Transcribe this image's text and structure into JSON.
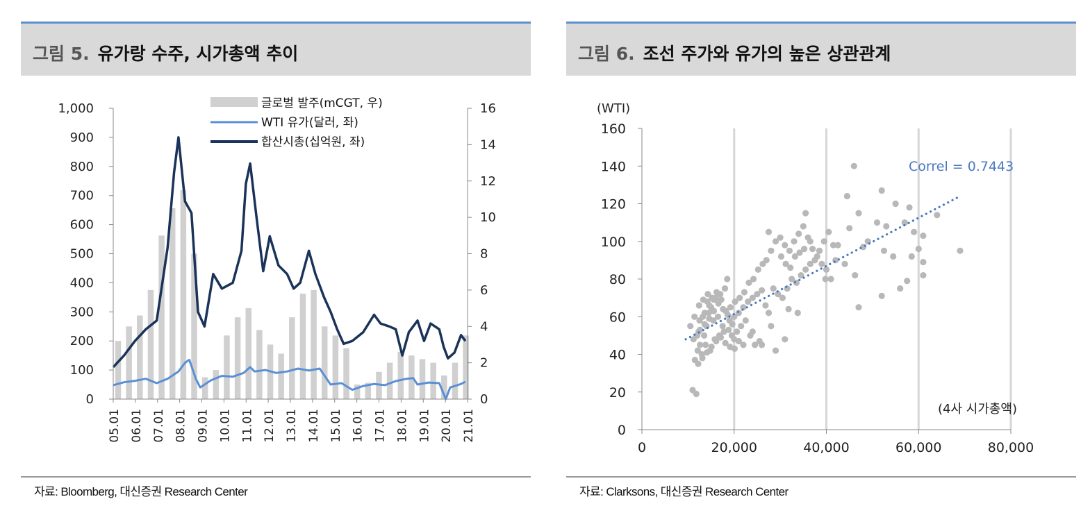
{
  "figures": [
    {
      "label": "그림 5.",
      "title": "유가랑 수주, 시가총액 추이",
      "source": "자료: Bloomberg, 대신증권 Research Center"
    },
    {
      "label": "그림 6.",
      "title": "조선 주가와 유가의 높은 상관관계",
      "source": "자료: Clarksons, 대신증권 Research Center"
    }
  ],
  "chart_data": [
    {
      "type": "line",
      "subtype": "dual-axis line with bar background",
      "x_tick_labels": [
        "05.01",
        "06.01",
        "07.01",
        "08.01",
        "09.01",
        "10.01",
        "11.01",
        "12.01",
        "13.01",
        "14.01",
        "15.01",
        "16.01",
        "17.01",
        "18.01",
        "19.01",
        "20.01",
        "21.01"
      ],
      "y_left": {
        "ticks": [
          "1,000",
          "900",
          "800",
          "700",
          "600",
          "500",
          "400",
          "300",
          "200",
          "100",
          "0"
        ],
        "range": [
          0,
          1000
        ]
      },
      "y_right": {
        "ticks": [
          "16",
          "14",
          "12",
          "10",
          "8",
          "6",
          "4",
          "2",
          "0"
        ],
        "range": [
          0,
          16
        ]
      },
      "x_range": [
        2005.0,
        2021.3
      ],
      "legend_position": "top-right",
      "colors": {
        "orders": "#d0d0d0",
        "wti": "#5a8fd6",
        "mcap": "#1a3358"
      },
      "series": [
        {
          "name": "글로벌 발주(mCGT, 우)",
          "axis": "right",
          "kind": "bar",
          "x": [
            2005.0,
            2005.5,
            2006.0,
            2006.5,
            2007.0,
            2007.5,
            2008.0,
            2008.5,
            2009.0,
            2009.5,
            2010.0,
            2010.5,
            2011.0,
            2011.5,
            2012.0,
            2012.5,
            2013.0,
            2013.5,
            2014.0,
            2014.5,
            2015.0,
            2015.5,
            2016.0,
            2016.5,
            2017.0,
            2017.5,
            2018.0,
            2018.5,
            2019.0,
            2019.5,
            2020.0,
            2020.5,
            2021.0
          ],
          "values": [
            3.2,
            4.0,
            4.6,
            6.0,
            9.0,
            10.5,
            11.5,
            8.0,
            1.2,
            1.6,
            3.5,
            4.5,
            5.0,
            3.8,
            3.0,
            2.5,
            4.5,
            5.8,
            6.0,
            4.0,
            3.5,
            2.8,
            0.8,
            0.9,
            1.5,
            2.0,
            2.6,
            2.4,
            2.2,
            2.0,
            1.3,
            2.0,
            3.5
          ]
        },
        {
          "name": "WTI 유가(달러, 좌)",
          "axis": "left",
          "kind": "line",
          "x": [
            2005.0,
            2005.5,
            2006.0,
            2006.5,
            2007.0,
            2007.5,
            2008.0,
            2008.3,
            2008.5,
            2008.8,
            2009.0,
            2009.5,
            2010.0,
            2010.5,
            2011.0,
            2011.3,
            2011.5,
            2012.0,
            2012.5,
            2013.0,
            2013.5,
            2014.0,
            2014.5,
            2015.0,
            2015.5,
            2016.0,
            2016.5,
            2017.0,
            2017.5,
            2018.0,
            2018.5,
            2018.8,
            2019.0,
            2019.5,
            2020.0,
            2020.3,
            2020.5,
            2021.0,
            2021.2
          ],
          "values": [
            48,
            58,
            63,
            70,
            55,
            70,
            95,
            125,
            135,
            70,
            40,
            65,
            80,
            77,
            90,
            110,
            95,
            100,
            90,
            95,
            105,
            98,
            105,
            50,
            55,
            32,
            45,
            52,
            48,
            62,
            70,
            72,
            50,
            57,
            55,
            -37,
            40,
            52,
            60
          ]
        },
        {
          "name": "합산시총(십억원, 좌)",
          "axis": "left",
          "kind": "line",
          "x": [
            2005.0,
            2005.5,
            2006.0,
            2006.5,
            2007.0,
            2007.5,
            2007.8,
            2008.0,
            2008.3,
            2008.6,
            2008.9,
            2009.2,
            2009.6,
            2010.0,
            2010.5,
            2010.9,
            2011.1,
            2011.3,
            2011.6,
            2011.9,
            2012.2,
            2012.6,
            2013.0,
            2013.3,
            2013.6,
            2014.0,
            2014.3,
            2014.7,
            2015.0,
            2015.3,
            2015.6,
            2016.0,
            2016.5,
            2017.0,
            2017.3,
            2017.7,
            2018.0,
            2018.3,
            2018.6,
            2019.0,
            2019.3,
            2019.6,
            2020.0,
            2020.2,
            2020.4,
            2020.7,
            2021.0,
            2021.2
          ],
          "values": [
            110,
            150,
            200,
            240,
            270,
            520,
            780,
            900,
            680,
            640,
            300,
            250,
            430,
            380,
            400,
            510,
            740,
            810,
            620,
            440,
            560,
            460,
            430,
            380,
            400,
            510,
            430,
            350,
            300,
            240,
            190,
            200,
            230,
            290,
            260,
            250,
            240,
            150,
            230,
            270,
            200,
            260,
            240,
            180,
            140,
            160,
            220,
            200
          ]
        }
      ]
    },
    {
      "type": "scatter",
      "ylabel": "(WTI)",
      "xlabel": "(4사 시가총액)",
      "x_tick_labels": [
        "0",
        "20,000",
        "40,000",
        "60,000",
        "80,000"
      ],
      "y_tick_labels": [
        "160",
        "140",
        "120",
        "100",
        "80",
        "60",
        "40",
        "20",
        "0"
      ],
      "xlim": [
        0,
        80000
      ],
      "ylim": [
        0,
        160
      ],
      "annotation": "Correl = 0.7443",
      "colors": {
        "points": "#b8b8b8",
        "trend": "#4a78c0",
        "annotation": "#4a78c0"
      },
      "trendline": {
        "x": [
          9500,
          69000
        ],
        "y": [
          48,
          124
        ]
      },
      "points": [
        [
          11000,
          21
        ],
        [
          11800,
          19
        ],
        [
          11500,
          37
        ],
        [
          12200,
          35
        ],
        [
          13000,
          40
        ],
        [
          12600,
          45
        ],
        [
          12000,
          50
        ],
        [
          12300,
          52
        ],
        [
          13500,
          50
        ],
        [
          14000,
          55
        ],
        [
          13200,
          60
        ],
        [
          14500,
          62
        ],
        [
          15000,
          65
        ],
        [
          14200,
          68
        ],
        [
          16000,
          70
        ],
        [
          17000,
          72
        ],
        [
          18000,
          75
        ],
        [
          18500,
          80
        ],
        [
          15500,
          58
        ],
        [
          16500,
          60
        ],
        [
          17500,
          55
        ],
        [
          18800,
          53
        ],
        [
          19500,
          50
        ],
        [
          20000,
          48
        ],
        [
          21000,
          47
        ],
        [
          22000,
          45
        ],
        [
          13800,
          45
        ],
        [
          14800,
          42
        ],
        [
          15800,
          48
        ],
        [
          16800,
          50
        ],
        [
          17800,
          52
        ],
        [
          19000,
          58
        ],
        [
          20000,
          60
        ],
        [
          21000,
          62
        ],
        [
          22000,
          65
        ],
        [
          23000,
          68
        ],
        [
          24000,
          70
        ],
        [
          25000,
          72
        ],
        [
          26000,
          74
        ],
        [
          21500,
          55
        ],
        [
          22500,
          58
        ],
        [
          23500,
          50
        ],
        [
          24500,
          45
        ],
        [
          25500,
          47
        ],
        [
          12500,
          58
        ],
        [
          13600,
          62
        ],
        [
          14600,
          66
        ],
        [
          15600,
          69
        ],
        [
          19200,
          65
        ],
        [
          20200,
          68
        ],
        [
          21200,
          70
        ],
        [
          22200,
          73
        ],
        [
          23200,
          78
        ],
        [
          24200,
          80
        ],
        [
          25200,
          85
        ],
        [
          26200,
          88
        ],
        [
          27000,
          90
        ],
        [
          28000,
          95
        ],
        [
          29000,
          100
        ],
        [
          30000,
          102
        ],
        [
          31000,
          98
        ],
        [
          32000,
          95
        ],
        [
          33000,
          100
        ],
        [
          34000,
          104
        ],
        [
          35000,
          108
        ],
        [
          36000,
          102
        ],
        [
          37000,
          96
        ],
        [
          38000,
          92
        ],
        [
          39000,
          88
        ],
        [
          40000,
          85
        ],
        [
          41000,
          80
        ],
        [
          42000,
          90
        ],
        [
          28500,
          75
        ],
        [
          29500,
          72
        ],
        [
          30500,
          70
        ],
        [
          31500,
          75
        ],
        [
          32500,
          80
        ],
        [
          33500,
          78
        ],
        [
          34500,
          82
        ],
        [
          35500,
          85
        ],
        [
          36500,
          88
        ],
        [
          37500,
          90
        ],
        [
          38500,
          95
        ],
        [
          39500,
          100
        ],
        [
          40500,
          105
        ],
        [
          41500,
          98
        ],
        [
          27500,
          105
        ],
        [
          30200,
          92
        ],
        [
          31200,
          88
        ],
        [
          32200,
          86
        ],
        [
          33200,
          92
        ],
        [
          34200,
          94
        ],
        [
          35200,
          96
        ],
        [
          31800,
          64
        ],
        [
          33800,
          62
        ],
        [
          29000,
          42
        ],
        [
          31000,
          48
        ],
        [
          26000,
          45
        ],
        [
          24000,
          52
        ],
        [
          35500,
          115
        ],
        [
          36500,
          100
        ],
        [
          44500,
          124
        ],
        [
          45000,
          107
        ],
        [
          47000,
          115
        ],
        [
          49000,
          100
        ],
        [
          51000,
          110
        ],
        [
          52500,
          95
        ],
        [
          53000,
          108
        ],
        [
          55000,
          120
        ],
        [
          57000,
          110
        ],
        [
          58000,
          118
        ],
        [
          59000,
          105
        ],
        [
          61000,
          103
        ],
        [
          64000,
          114
        ],
        [
          69000,
          95
        ],
        [
          46000,
          140
        ],
        [
          52000,
          127
        ],
        [
          47000,
          65
        ],
        [
          52000,
          71
        ],
        [
          56000,
          75
        ],
        [
          57500,
          79
        ],
        [
          61000,
          89
        ],
        [
          60000,
          96
        ],
        [
          61000,
          82
        ],
        [
          48000,
          97
        ],
        [
          54500,
          92
        ],
        [
          58500,
          92
        ],
        [
          42500,
          98
        ],
        [
          44000,
          88
        ],
        [
          46200,
          82
        ],
        [
          39800,
          80
        ],
        [
          38500,
          95
        ],
        [
          28000,
          55
        ],
        [
          27500,
          62
        ],
        [
          26800,
          66
        ],
        [
          18200,
          63
        ],
        [
          17200,
          69
        ],
        [
          16200,
          73
        ],
        [
          15200,
          70
        ],
        [
          14300,
          72
        ],
        [
          13300,
          69
        ],
        [
          12400,
          66
        ],
        [
          11400,
          60
        ],
        [
          10500,
          55
        ],
        [
          11200,
          48
        ],
        [
          12100,
          42
        ],
        [
          13100,
          38
        ],
        [
          14100,
          41
        ],
        [
          15100,
          44
        ],
        [
          16100,
          47
        ],
        [
          17100,
          49
        ],
        [
          18100,
          46
        ],
        [
          19100,
          44
        ],
        [
          20100,
          43
        ],
        [
          20600,
          52
        ],
        [
          19600,
          56
        ],
        [
          18600,
          61
        ],
        [
          17600,
          64
        ],
        [
          16600,
          67
        ],
        [
          15600,
          63
        ],
        [
          14600,
          59
        ],
        [
          13600,
          56
        ],
        [
          12600,
          53
        ]
      ]
    }
  ]
}
